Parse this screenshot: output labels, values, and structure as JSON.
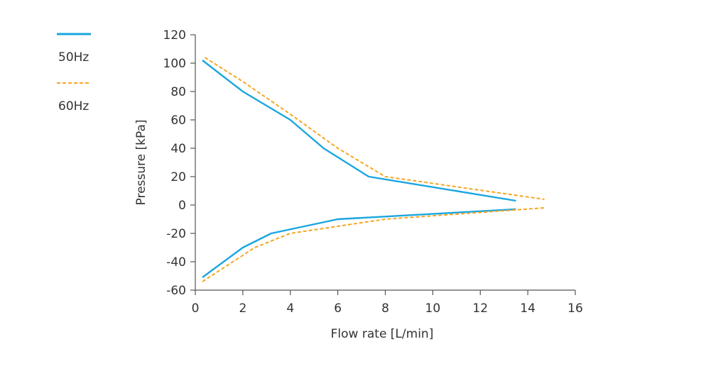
{
  "chart_data": {
    "type": "line",
    "title": "",
    "xlabel": "Flow rate [L/min]",
    "ylabel": "Pressure [kPa]",
    "xlim": [
      0,
      16
    ],
    "ylim": [
      -60,
      120
    ],
    "xticks": [
      0,
      2,
      4,
      6,
      8,
      10,
      12,
      14,
      16
    ],
    "yticks": [
      -60,
      -40,
      -20,
      0,
      20,
      40,
      60,
      80,
      100,
      120
    ],
    "grid": false,
    "legend_position": "top-left",
    "series": [
      {
        "name": "50Hz",
        "style": "solid",
        "color": "#1aa6e0",
        "segments": [
          {
            "name": "pressure",
            "x": [
              0.3,
              2.0,
              4.0,
              5.4,
              7.3,
              13.5
            ],
            "y": [
              102,
              80,
              60,
              40,
              20,
              3
            ]
          },
          {
            "name": "vacuum",
            "x": [
              0.3,
              2.0,
              3.2,
              6.0,
              13.5
            ],
            "y": [
              -51,
              -30,
              -20,
              -10,
              -3
            ]
          }
        ]
      },
      {
        "name": "60Hz",
        "style": "dashed",
        "color": "#f5a623",
        "segments": [
          {
            "name": "pressure",
            "x": [
              0.4,
              2.0,
              4.0,
              6.0,
              8.0,
              14.7
            ],
            "y": [
              104,
              87,
              64,
              40,
              20,
              4
            ]
          },
          {
            "name": "vacuum",
            "x": [
              0.3,
              2.5,
              4.0,
              6.0,
              8.0,
              14.7
            ],
            "y": [
              -54,
              -30,
              -20,
              -15,
              -10,
              -2
            ]
          }
        ]
      }
    ]
  }
}
